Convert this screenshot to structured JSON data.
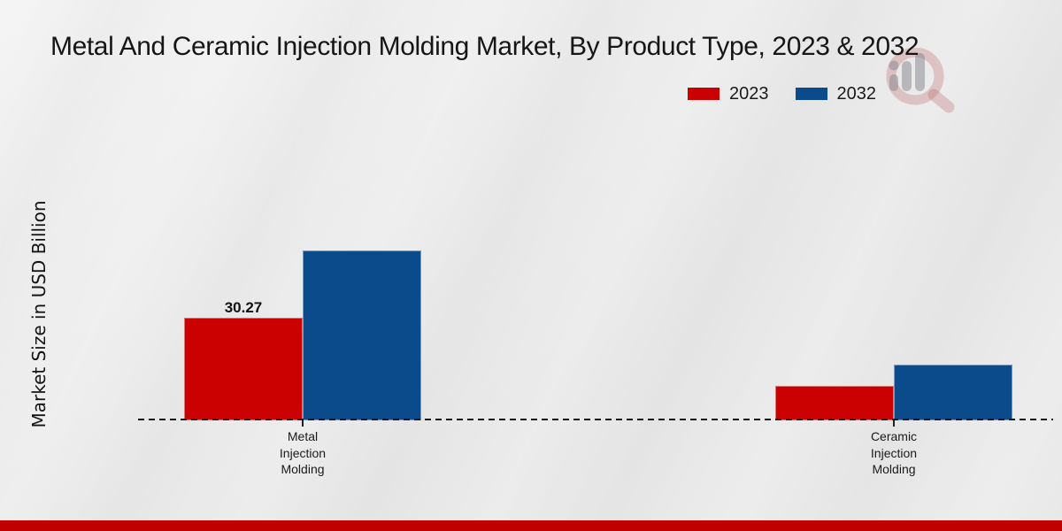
{
  "title": "Metal And Ceramic Injection Molding Market, By Product Type, 2023 & 2032",
  "y_axis_label": "Market Size in USD Billion",
  "legend": {
    "position": "top-right",
    "items": [
      {
        "label": "2023",
        "color": "#cb0000"
      },
      {
        "label": "2032",
        "color": "#0b4a8b"
      }
    ]
  },
  "colors": {
    "bar_2023": "#cb0000",
    "bar_2032": "#0b4a8b",
    "footer_band": "#c00000",
    "background": "#ebebeb",
    "axis_line": "#161616",
    "text": "#1a1a1a"
  },
  "watermark": {
    "description": "faint magnifying-glass logo with grey bar-chart columns"
  },
  "chart_data": {
    "type": "bar",
    "title": "Metal And Ceramic Injection Molding Market, By Product Type, 2023 & 2032",
    "xlabel": "",
    "ylabel": "Market Size in USD Billion",
    "categories": [
      "Metal Injection Molding",
      "Ceramic Injection Molding"
    ],
    "series": [
      {
        "name": "2023",
        "color": "#cb0000",
        "values": [
          30.27,
          10.2
        ]
      },
      {
        "name": "2032",
        "color": "#0b4a8b",
        "values": [
          50.1,
          16.4
        ]
      }
    ],
    "value_labels": [
      {
        "series_index": 0,
        "category_index": 0,
        "text": "30.27"
      }
    ],
    "ylim": [
      0,
      55
    ],
    "y_ticks_visible": false,
    "grid": false,
    "legend_position": "top-right",
    "baseline_style": "dashed"
  }
}
